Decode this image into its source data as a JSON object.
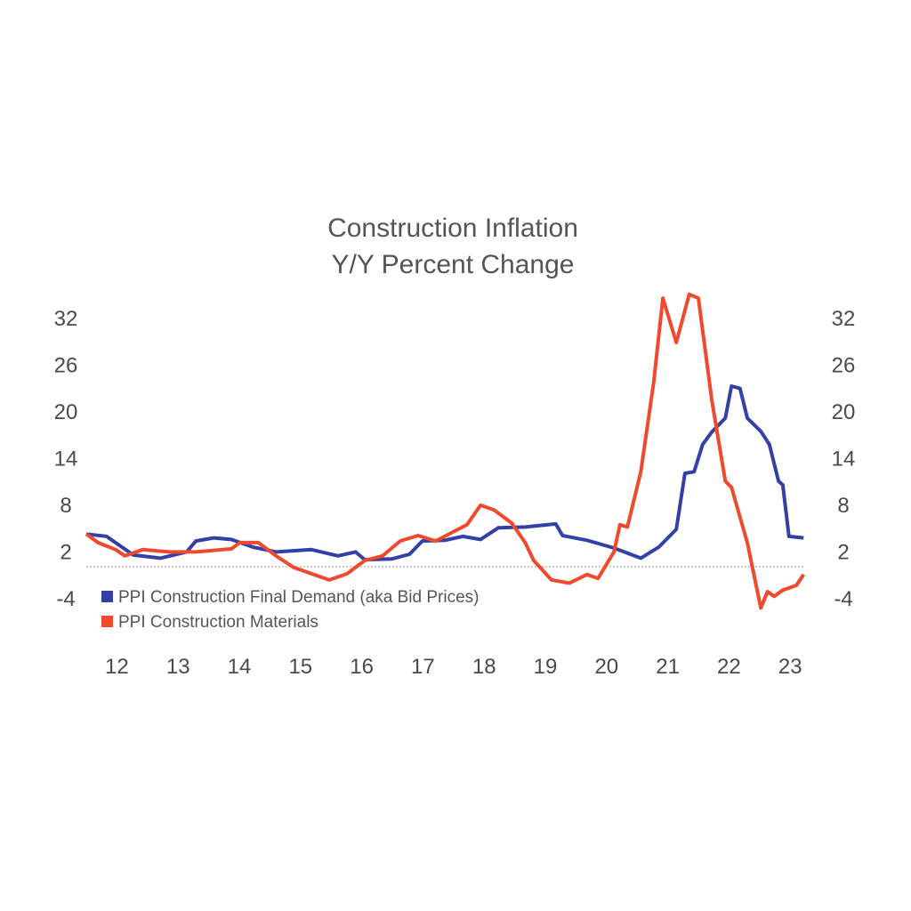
{
  "chart_data": {
    "type": "line",
    "title": "Construction Inflation",
    "subtitle": "Y/Y Percent Change",
    "xlabel": "",
    "ylabel": "",
    "x_tick_labels": [
      "12",
      "13",
      "14",
      "15",
      "16",
      "17",
      "18",
      "19",
      "20",
      "21",
      "22",
      "23"
    ],
    "y_tick_labels": [
      "32",
      "26",
      "20",
      "14",
      "8",
      "2",
      "-4"
    ],
    "y_ticks": [
      32,
      26,
      20,
      14,
      8,
      2,
      -4
    ],
    "ylim": [
      -6,
      36
    ],
    "xlim": [
      2012.0,
      2023.75
    ],
    "grid": false,
    "zero_line": "dotted",
    "legend_position": "bottom-left",
    "series": [
      {
        "name": "PPI Construction Final Demand (aka Bid Prices)",
        "color": "#3340a8",
        "x": [
          2012.0,
          2012.33,
          2012.55,
          2012.77,
          2013.21,
          2013.64,
          2013.79,
          2014.08,
          2014.37,
          2014.73,
          2015.1,
          2015.68,
          2016.11,
          2016.4,
          2016.55,
          2016.99,
          2017.28,
          2017.49,
          2017.86,
          2018.15,
          2018.44,
          2018.73,
          2019.17,
          2019.67,
          2019.78,
          2020.18,
          2020.62,
          2021.06,
          2021.35,
          2021.64,
          2021.78,
          2021.93,
          2022.07,
          2022.22,
          2022.44,
          2022.54,
          2022.68,
          2022.8,
          2023.02,
          2023.16,
          2023.31,
          2023.38,
          2023.48,
          2023.72
        ],
        "values": [
          4.2,
          3.9,
          2.7,
          1.5,
          1.1,
          1.9,
          3.3,
          3.7,
          3.5,
          2.5,
          1.9,
          2.2,
          1.4,
          1.9,
          0.9,
          1.0,
          1.6,
          3.3,
          3.4,
          3.9,
          3.5,
          5.0,
          5.1,
          5.5,
          4.0,
          3.4,
          2.4,
          1.1,
          2.5,
          4.8,
          12.0,
          12.2,
          15.7,
          17.3,
          19.1,
          23.2,
          22.9,
          19.1,
          17.4,
          15.7,
          11.0,
          10.5,
          3.9,
          3.7
        ]
      },
      {
        "name": "PPI Construction Materials",
        "color": "#f04a2e",
        "x": [
          2012.0,
          2012.19,
          2012.48,
          2012.63,
          2012.92,
          2013.35,
          2013.79,
          2014.37,
          2014.51,
          2014.81,
          2015.1,
          2015.39,
          2015.97,
          2016.26,
          2016.55,
          2016.84,
          2017.13,
          2017.42,
          2017.71,
          2018.0,
          2018.22,
          2018.44,
          2018.66,
          2018.95,
          2019.17,
          2019.31,
          2019.6,
          2019.89,
          2020.18,
          2020.36,
          2020.62,
          2020.72,
          2020.84,
          2021.06,
          2021.27,
          2021.42,
          2021.64,
          2021.85,
          2022.0,
          2022.22,
          2022.44,
          2022.54,
          2022.8,
          2023.02,
          2023.13,
          2023.24,
          2023.38,
          2023.6,
          2023.72
        ],
        "values": [
          4.2,
          3.1,
          2.2,
          1.4,
          2.2,
          1.9,
          1.9,
          2.3,
          3.1,
          3.1,
          1.4,
          -0.1,
          -1.7,
          -0.9,
          0.8,
          1.4,
          3.3,
          4.0,
          3.3,
          4.5,
          5.4,
          7.9,
          7.3,
          5.6,
          3.1,
          0.8,
          -1.7,
          -2.1,
          -1.0,
          -1.5,
          1.9,
          5.4,
          5.1,
          12.2,
          23.7,
          34.5,
          28.8,
          35.0,
          34.5,
          21.4,
          11.0,
          10.2,
          3.1,
          -5.3,
          -3.2,
          -3.8,
          -3.0,
          -2.4,
          -1.0
        ]
      }
    ]
  }
}
